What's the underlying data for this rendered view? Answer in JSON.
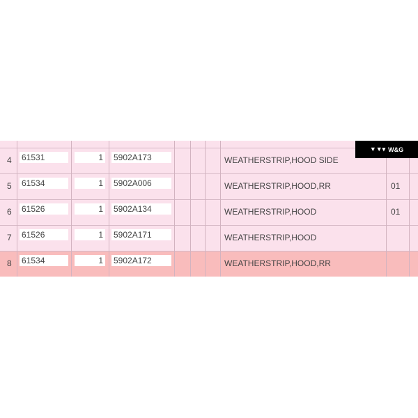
{
  "logo": {
    "text": "W&G",
    "icon": "logo-mark-icon"
  },
  "colors": {
    "row_bg": "#fbe1ec",
    "highlight_bg": "#f9bcbc"
  },
  "rows": [
    {
      "num": "4",
      "code": "61531",
      "qty": "1",
      "part": "5902A173",
      "desc": "WEATHERSTRIP,HOOD SIDE",
      "extra": ""
    },
    {
      "num": "5",
      "code": "61534",
      "qty": "1",
      "part": "5902A006",
      "desc": "WEATHERSTRIP,HOOD,RR",
      "extra": "01"
    },
    {
      "num": "6",
      "code": "61526",
      "qty": "1",
      "part": "5902A134",
      "desc": "WEATHERSTRIP,HOOD",
      "extra": "01"
    },
    {
      "num": "7",
      "code": "61526",
      "qty": "1",
      "part": "5902A171",
      "desc": "WEATHERSTRIP,HOOD",
      "extra": ""
    },
    {
      "num": "8",
      "code": "61534",
      "qty": "1",
      "part": "5902A172",
      "desc": "WEATHERSTRIP,HOOD,RR",
      "extra": "",
      "highlighted": true
    }
  ]
}
